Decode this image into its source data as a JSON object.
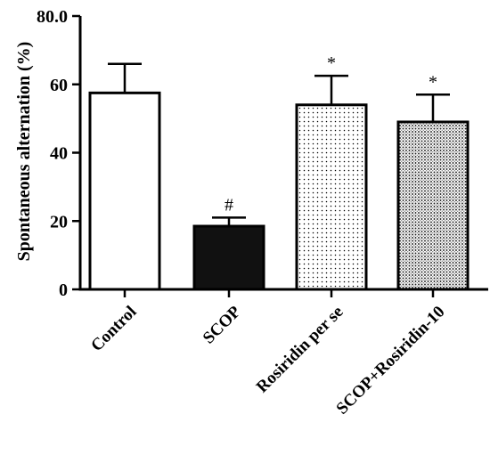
{
  "chart_data": {
    "type": "bar",
    "categories": [
      "Control",
      "SCOP",
      "Rosiridin per se",
      "SCOP+Rosiridin-10"
    ],
    "values": [
      57.5,
      18.5,
      54,
      49
    ],
    "errors": [
      8.5,
      2.5,
      8.5,
      8
    ],
    "annotations": [
      "",
      "#",
      "*",
      "*"
    ],
    "fills": [
      "white",
      "black",
      "sparse-dots",
      "dense-dots"
    ],
    "title": "",
    "xlabel": "",
    "ylabel": "Spontaneous alternation (%)",
    "ylim": [
      0,
      80
    ],
    "yticks": [
      0,
      20,
      40,
      60,
      80
    ],
    "grid": false,
    "legend": "none"
  }
}
